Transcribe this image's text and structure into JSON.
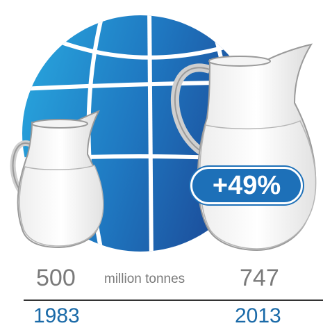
{
  "left": {
    "value": "500",
    "year": "1983"
  },
  "right": {
    "value": "747",
    "year": "2013"
  },
  "unit": "million tonnes",
  "change_badge": "+49%",
  "colors": {
    "globe_dark": "#1c4e9b",
    "globe_light": "#29a9e0",
    "year_text": "#1a6aa8",
    "value_text": "#7a7a7a",
    "badge": "#1d70b8"
  },
  "icons": [
    "globe-icon",
    "small-milk-jug-icon",
    "large-milk-jug-icon"
  ]
}
